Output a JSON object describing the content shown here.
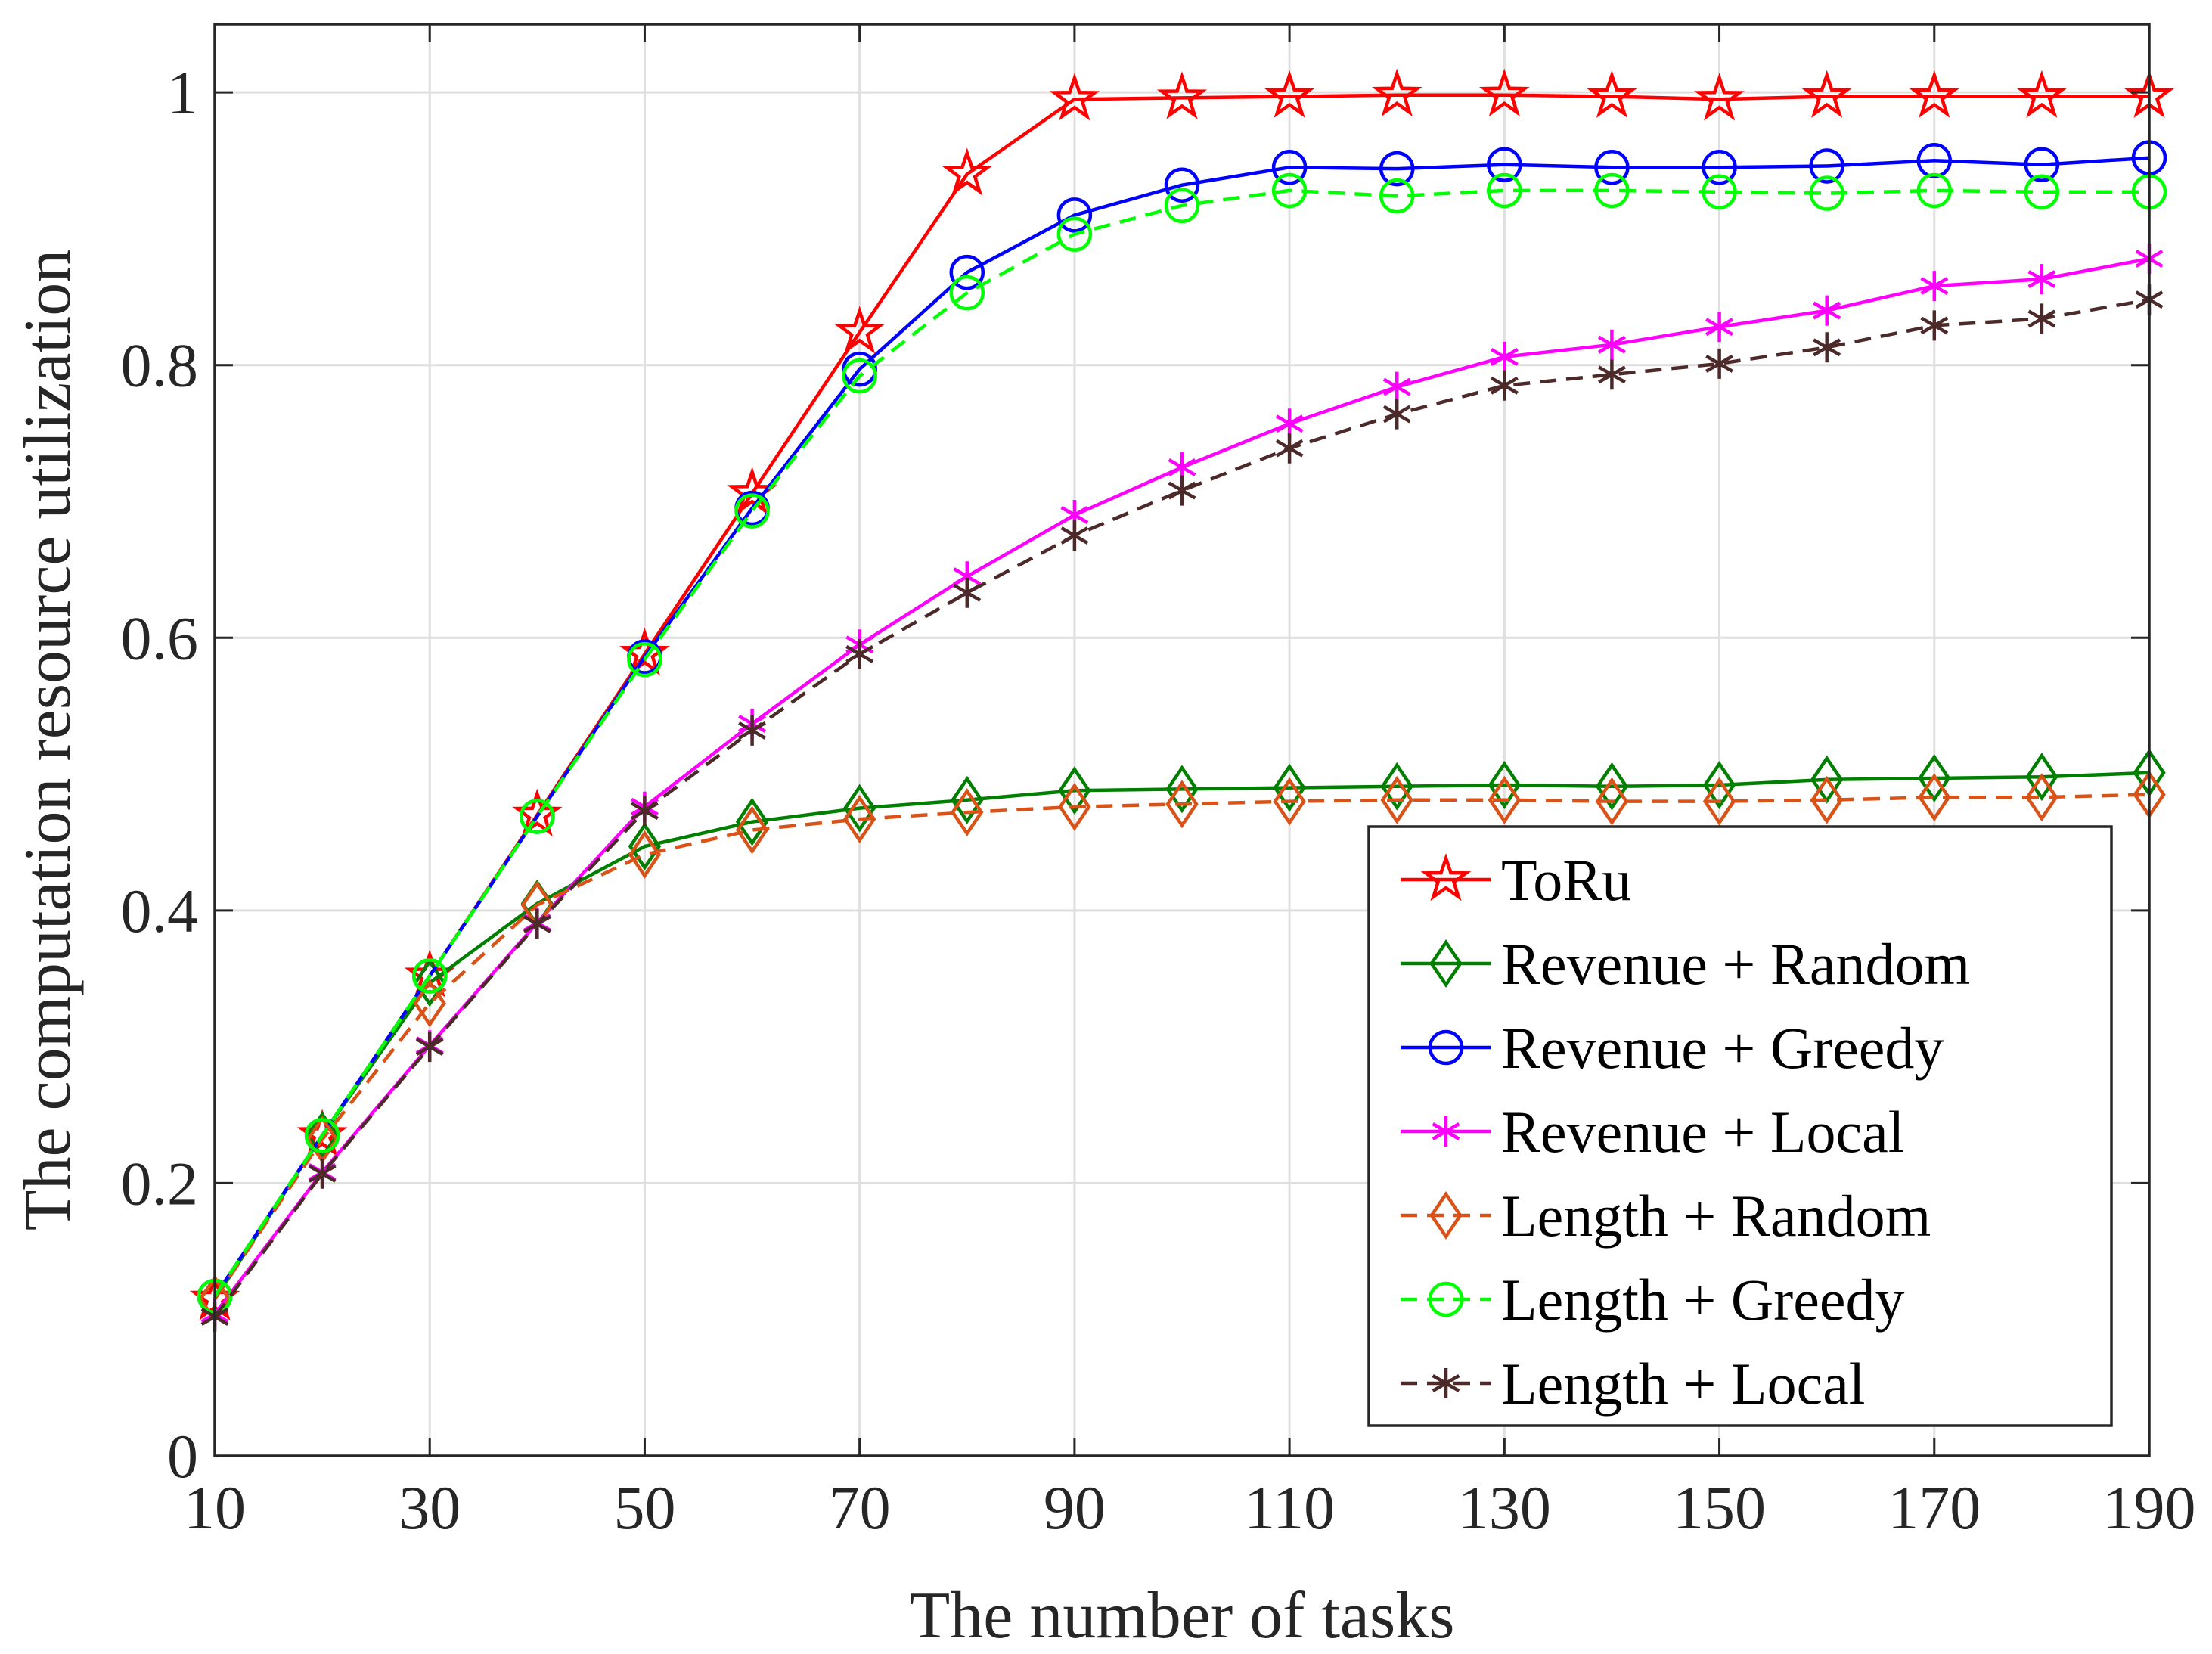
{
  "chart_data": {
    "type": "line",
    "title": "",
    "xlabel": "The number of tasks",
    "ylabel": "The computation resource utilization",
    "xlim": [
      10,
      190
    ],
    "ylim": [
      0,
      1.05
    ],
    "grid": true,
    "legend_position": "bottom-right",
    "xticks": [
      10,
      30,
      50,
      70,
      90,
      110,
      130,
      150,
      170,
      190
    ],
    "yticks": [
      0,
      0.2,
      0.4,
      0.6,
      0.8,
      1
    ],
    "ytick_labels": [
      "0",
      "0.2",
      "0.4",
      "0.6",
      "0.8",
      "1"
    ],
    "x": [
      10,
      20,
      30,
      40,
      50,
      60,
      70,
      80,
      90,
      100,
      110,
      120,
      130,
      140,
      150,
      160,
      170,
      180,
      190
    ],
    "series": [
      {
        "name": "ToRu",
        "color": "#ff0000",
        "dash": "solid",
        "marker": "star",
        "values": [
          0.115,
          0.235,
          0.352,
          0.47,
          0.588,
          0.706,
          0.824,
          0.94,
          0.995,
          0.996,
          0.997,
          0.998,
          0.998,
          0.997,
          0.995,
          0.997,
          0.997,
          0.997,
          0.997
        ]
      },
      {
        "name": "Revenue + Random",
        "color": "#007f00",
        "dash": "solid",
        "marker": "diamond",
        "values": [
          0.115,
          0.235,
          0.347,
          0.405,
          0.447,
          0.465,
          0.475,
          0.481,
          0.488,
          0.489,
          0.49,
          0.491,
          0.492,
          0.491,
          0.492,
          0.496,
          0.497,
          0.498,
          0.501
        ]
      },
      {
        "name": "Revenue + Greedy",
        "color": "#0000ff",
        "dash": "solid",
        "marker": "circle",
        "values": [
          0.117,
          0.235,
          0.352,
          0.469,
          0.586,
          0.695,
          0.797,
          0.868,
          0.91,
          0.932,
          0.945,
          0.944,
          0.947,
          0.945,
          0.945,
          0.946,
          0.95,
          0.947,
          0.952
        ]
      },
      {
        "name": "Revenue + Local",
        "color": "#ff00ff",
        "dash": "solid",
        "marker": "asterisk",
        "values": [
          0.104,
          0.208,
          0.301,
          0.391,
          0.476,
          0.537,
          0.595,
          0.645,
          0.69,
          0.725,
          0.757,
          0.784,
          0.806,
          0.815,
          0.828,
          0.84,
          0.858,
          0.863,
          0.878
        ]
      },
      {
        "name": "Length + Random",
        "color": "#d95319",
        "dash": "dashed",
        "marker": "diamond",
        "values": [
          0.115,
          0.232,
          0.332,
          0.404,
          0.441,
          0.459,
          0.467,
          0.472,
          0.476,
          0.478,
          0.48,
          0.481,
          0.481,
          0.48,
          0.48,
          0.481,
          0.483,
          0.483,
          0.485
        ]
      },
      {
        "name": "Length + Greedy",
        "color": "#00ff00",
        "dash": "dashed",
        "marker": "circle",
        "values": [
          0.117,
          0.235,
          0.352,
          0.469,
          0.584,
          0.693,
          0.792,
          0.853,
          0.896,
          0.917,
          0.928,
          0.924,
          0.928,
          0.928,
          0.927,
          0.926,
          0.928,
          0.927,
          0.927
        ]
      },
      {
        "name": "Length + Local",
        "color": "#4d2a2a",
        "dash": "dashed",
        "marker": "asterisk",
        "values": [
          0.102,
          0.207,
          0.3,
          0.39,
          0.473,
          0.532,
          0.588,
          0.633,
          0.675,
          0.708,
          0.739,
          0.764,
          0.785,
          0.793,
          0.801,
          0.813,
          0.829,
          0.834,
          0.848
        ]
      }
    ]
  }
}
